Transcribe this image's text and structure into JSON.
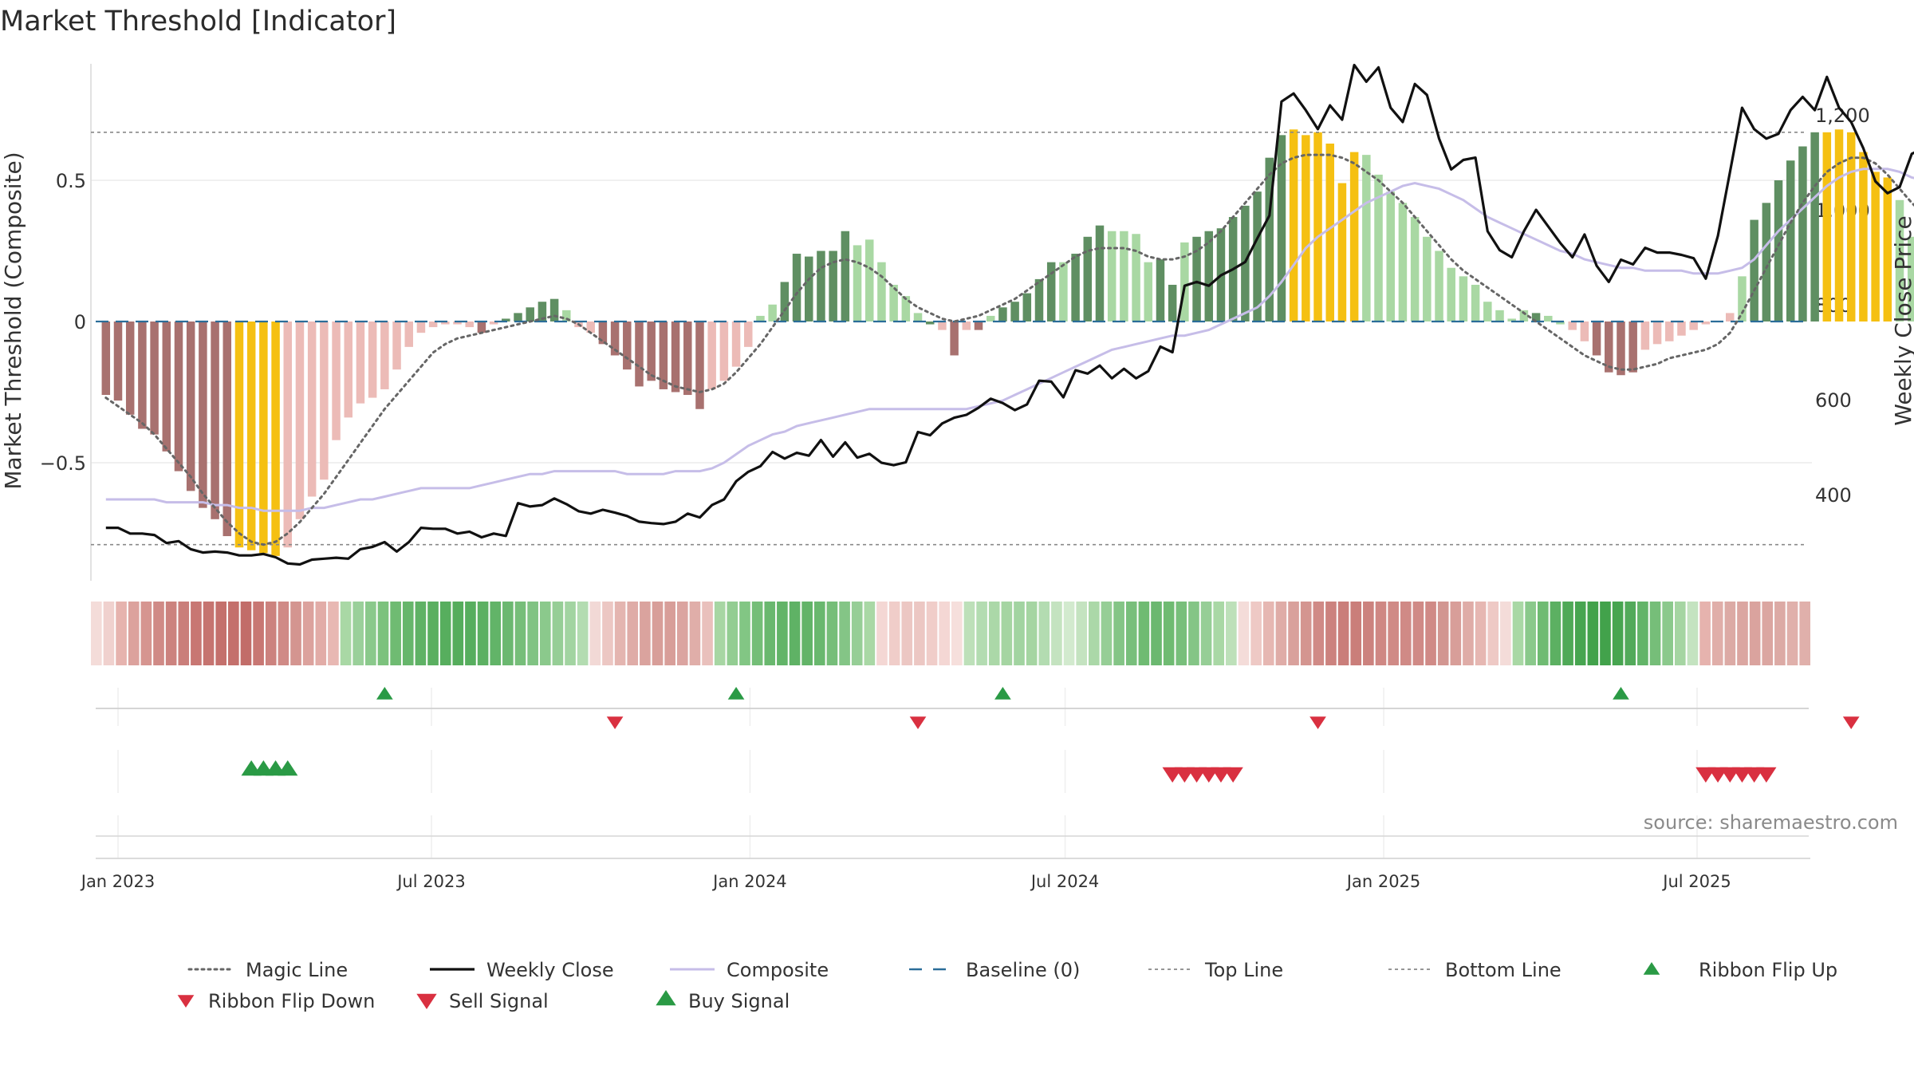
{
  "title": "Market Threshold [Indicator]",
  "source": "source: sharemaestro.com",
  "colors": {
    "magic_line": "#666666",
    "weekly_close": "#111111",
    "composite": "#c6bde8",
    "baseline": "#2b6d99",
    "top_line": "#888888",
    "bottom_line": "#888888",
    "buy": "#2a9a45",
    "sell": "#d93040",
    "extreme": "#f5c012",
    "pos_dark": "#5f8f62",
    "pos_light": "#a9d8a3",
    "neg_dark": "#a8716f",
    "neg_light": "#ecbbb7"
  },
  "chart_data": {
    "type": "bar",
    "ylabel_left": "Market Threshold (Composite)",
    "ylabel_right": "Weekly Close Price",
    "ylim_left": [
      -0.9,
      0.9
    ],
    "ylim_right": [
      190,
      1300
    ],
    "left_ticks": [
      {
        "v": 0.5,
        "label": "0.5"
      },
      {
        "v": 0,
        "label": "0"
      },
      {
        "v": -0.5,
        "label": "−0.5"
      }
    ],
    "right_ticks": [
      {
        "v": 1200,
        "label": "1,200"
      },
      {
        "v": 1000,
        "label": "1,000"
      },
      {
        "v": 800,
        "label": "800"
      },
      {
        "v": 600,
        "label": "600"
      },
      {
        "v": 400,
        "label": "400"
      }
    ],
    "x_ticks": [
      {
        "date": "2023-01-01",
        "label": "Jan 2023"
      },
      {
        "date": "2023-07-01",
        "label": "Jul 2023"
      },
      {
        "date": "2024-01-01",
        "label": "Jan 2024"
      },
      {
        "date": "2024-07-01",
        "label": "Jul 2024"
      },
      {
        "date": "2025-01-01",
        "label": "Jan 2025"
      },
      {
        "date": "2025-07-01",
        "label": "Jul 2025"
      }
    ],
    "x_range": [
      "2022-12-18",
      "2025-10-26"
    ],
    "start_date": "2022-12-25",
    "top_line": 0.67,
    "bottom_line": -0.79,
    "composite_bars": [
      -0.26,
      -0.28,
      -0.33,
      -0.38,
      -0.4,
      -0.46,
      -0.53,
      -0.6,
      -0.66,
      -0.7,
      -0.76,
      -0.8,
      -0.81,
      -0.82,
      -0.83,
      -0.8,
      -0.7,
      -0.62,
      -0.56,
      -0.42,
      -0.34,
      -0.29,
      -0.27,
      -0.24,
      -0.17,
      -0.09,
      -0.04,
      -0.02,
      -0.01,
      -0.01,
      -0.02,
      -0.04,
      -0.01,
      0.01,
      0.03,
      0.05,
      0.07,
      0.08,
      0.04,
      -0.02,
      -0.04,
      -0.08,
      -0.12,
      -0.17,
      -0.23,
      -0.21,
      -0.24,
      -0.25,
      -0.26,
      -0.31,
      -0.24,
      -0.21,
      -0.16,
      -0.09,
      0.02,
      0.06,
      0.14,
      0.24,
      0.23,
      0.25,
      0.25,
      0.32,
      0.27,
      0.29,
      0.21,
      0.13,
      0.09,
      0.03,
      -0.01,
      -0.03,
      -0.12,
      -0.03,
      -0.03,
      0.02,
      0.05,
      0.07,
      0.1,
      0.15,
      0.21,
      0.21,
      0.24,
      0.3,
      0.34,
      0.32,
      0.32,
      0.31,
      0.21,
      0.22,
      0.13,
      0.28,
      0.3,
      0.32,
      0.33,
      0.37,
      0.41,
      0.46,
      0.58,
      0.66,
      0.68,
      0.66,
      0.67,
      0.63,
      0.49,
      0.6,
      0.59,
      0.52,
      0.46,
      0.42,
      0.37,
      0.3,
      0.25,
      0.19,
      0.16,
      0.13,
      0.07,
      0.04,
      0.01,
      0.04,
      0.03,
      0.02,
      -0.01,
      -0.03,
      -0.07,
      -0.12,
      -0.18,
      -0.19,
      -0.18,
      -0.1,
      -0.08,
      -0.07,
      -0.05,
      -0.03,
      -0.01,
      0.0,
      0.03,
      0.16,
      0.36,
      0.42,
      0.5,
      0.57,
      0.62,
      0.67,
      0.67,
      0.68,
      0.67,
      0.6,
      0.53,
      0.51,
      0.43,
      0.3,
      0.21,
      0.2,
      0.22
    ],
    "bar_category": [
      "nd",
      "nd",
      "nd",
      "nd",
      "nd",
      "nd",
      "nd",
      "nd",
      "nd",
      "nd",
      "nd",
      "ex",
      "ex",
      "ex",
      "ex",
      "nl",
      "nl",
      "nl",
      "nl",
      "nl",
      "nl",
      "nl",
      "nl",
      "nl",
      "nl",
      "nl",
      "nl",
      "nl",
      "nl",
      "nl",
      "nl",
      "nd",
      "nl",
      "pd",
      "pd",
      "pd",
      "pd",
      "pd",
      "pl",
      "nl",
      "nl",
      "nd",
      "nd",
      "nd",
      "nd",
      "nd",
      "nd",
      "nd",
      "nd",
      "nd",
      "nl",
      "nl",
      "nl",
      "nl",
      "pl",
      "pl",
      "pd",
      "pd",
      "pd",
      "pd",
      "pd",
      "pd",
      "pl",
      "pl",
      "pl",
      "pl",
      "pl",
      "pl",
      "pd",
      "nl",
      "nd",
      "nl",
      "nd",
      "pl",
      "pd",
      "pd",
      "pd",
      "pd",
      "pd",
      "pl",
      "pd",
      "pd",
      "pd",
      "pl",
      "pl",
      "pl",
      "pl",
      "pd",
      "pd",
      "pl",
      "pd",
      "pd",
      "pd",
      "pd",
      "pd",
      "pd",
      "pd",
      "pd",
      "ex",
      "ex",
      "ex",
      "ex",
      "ex",
      "ex",
      "pl",
      "pl",
      "pl",
      "pl",
      "pl",
      "pl",
      "pl",
      "pl",
      "pl",
      "pl",
      "pl",
      "pl",
      "pl",
      "pl",
      "pd",
      "pl",
      "pl",
      "nl",
      "nl",
      "nd",
      "nd",
      "nd",
      "nd",
      "nl",
      "nl",
      "nl",
      "nl",
      "nl",
      "nl",
      "nl",
      "nl",
      "pl",
      "pd",
      "pd",
      "pd",
      "pd",
      "pd",
      "pd",
      "ex",
      "ex",
      "ex",
      "ex",
      "ex",
      "ex",
      "pl",
      "pl",
      "pl",
      "pl",
      "pl",
      "pl",
      "pd",
      "pd"
    ],
    "magic_line": [
      -0.27,
      -0.3,
      -0.33,
      -0.36,
      -0.4,
      -0.45,
      -0.5,
      -0.55,
      -0.61,
      -0.66,
      -0.71,
      -0.75,
      -0.78,
      -0.79,
      -0.78,
      -0.75,
      -0.71,
      -0.66,
      -0.61,
      -0.55,
      -0.49,
      -0.43,
      -0.37,
      -0.31,
      -0.26,
      -0.21,
      -0.16,
      -0.11,
      -0.08,
      -0.06,
      -0.05,
      -0.04,
      -0.03,
      -0.02,
      -0.01,
      0.0,
      0.01,
      0.02,
      0.01,
      -0.01,
      -0.04,
      -0.07,
      -0.1,
      -0.13,
      -0.16,
      -0.19,
      -0.21,
      -0.23,
      -0.24,
      -0.25,
      -0.24,
      -0.22,
      -0.18,
      -0.13,
      -0.08,
      -0.02,
      0.04,
      0.1,
      0.15,
      0.19,
      0.21,
      0.22,
      0.21,
      0.19,
      0.16,
      0.12,
      0.08,
      0.05,
      0.03,
      0.01,
      0.0,
      0.01,
      0.02,
      0.04,
      0.06,
      0.08,
      0.11,
      0.14,
      0.17,
      0.2,
      0.23,
      0.25,
      0.26,
      0.26,
      0.26,
      0.25,
      0.23,
      0.22,
      0.22,
      0.23,
      0.25,
      0.28,
      0.32,
      0.37,
      0.42,
      0.47,
      0.52,
      0.56,
      0.58,
      0.59,
      0.59,
      0.59,
      0.58,
      0.56,
      0.53,
      0.5,
      0.46,
      0.42,
      0.37,
      0.32,
      0.27,
      0.22,
      0.18,
      0.15,
      0.12,
      0.09,
      0.06,
      0.03,
      0.0,
      -0.03,
      -0.06,
      -0.09,
      -0.12,
      -0.14,
      -0.16,
      -0.17,
      -0.17,
      -0.16,
      -0.15,
      -0.13,
      -0.12,
      -0.11,
      -0.1,
      -0.08,
      -0.04,
      0.03,
      0.11,
      0.19,
      0.27,
      0.35,
      0.42,
      0.48,
      0.53,
      0.56,
      0.58,
      0.58,
      0.56,
      0.52,
      0.47,
      0.42,
      0.38,
      0.34
    ],
    "composite_line": [
      -0.63,
      -0.63,
      -0.63,
      -0.63,
      -0.63,
      -0.64,
      -0.64,
      -0.64,
      -0.64,
      -0.65,
      -0.65,
      -0.66,
      -0.66,
      -0.67,
      -0.67,
      -0.67,
      -0.67,
      -0.66,
      -0.66,
      -0.65,
      -0.64,
      -0.63,
      -0.63,
      -0.62,
      -0.61,
      -0.6,
      -0.59,
      -0.59,
      -0.59,
      -0.59,
      -0.59,
      -0.58,
      -0.57,
      -0.56,
      -0.55,
      -0.54,
      -0.54,
      -0.53,
      -0.53,
      -0.53,
      -0.53,
      -0.53,
      -0.53,
      -0.54,
      -0.54,
      -0.54,
      -0.54,
      -0.53,
      -0.53,
      -0.53,
      -0.52,
      -0.5,
      -0.47,
      -0.44,
      -0.42,
      -0.4,
      -0.39,
      -0.37,
      -0.36,
      -0.35,
      -0.34,
      -0.33,
      -0.32,
      -0.31,
      -0.31,
      -0.31,
      -0.31,
      -0.31,
      -0.31,
      -0.31,
      -0.31,
      -0.31,
      -0.3,
      -0.29,
      -0.28,
      -0.26,
      -0.24,
      -0.22,
      -0.2,
      -0.18,
      -0.16,
      -0.14,
      -0.12,
      -0.1,
      -0.09,
      -0.08,
      -0.07,
      -0.06,
      -0.05,
      -0.05,
      -0.04,
      -0.03,
      -0.01,
      0.01,
      0.03,
      0.05,
      0.09,
      0.14,
      0.2,
      0.26,
      0.3,
      0.33,
      0.36,
      0.39,
      0.42,
      0.44,
      0.46,
      0.48,
      0.49,
      0.48,
      0.47,
      0.45,
      0.43,
      0.4,
      0.37,
      0.35,
      0.33,
      0.31,
      0.29,
      0.27,
      0.25,
      0.24,
      0.22,
      0.21,
      0.2,
      0.19,
      0.19,
      0.18,
      0.18,
      0.18,
      0.18,
      0.17,
      0.17,
      0.17,
      0.18,
      0.19,
      0.22,
      0.27,
      0.32,
      0.36,
      0.4,
      0.44,
      0.48,
      0.51,
      0.53,
      0.54,
      0.54,
      0.54,
      0.53,
      0.51,
      0.5,
      0.5,
      0.5
    ],
    "weekly_close": [
      330,
      330,
      318,
      318,
      315,
      298,
      302,
      285,
      278,
      280,
      278,
      272,
      272,
      275,
      268,
      255,
      253,
      263,
      265,
      267,
      265,
      285,
      290,
      300,
      280,
      300,
      330,
      328,
      328,
      318,
      322,
      310,
      318,
      313,
      382,
      375,
      378,
      392,
      380,
      365,
      360,
      368,
      362,
      355,
      343,
      340,
      338,
      343,
      360,
      352,
      378,
      390,
      428,
      448,
      460,
      490,
      476,
      488,
      482,
      515,
      480,
      510,
      478,
      486,
      467,
      462,
      468,
      532,
      525,
      550,
      562,
      568,
      583,
      602,
      593,
      578,
      590,
      640,
      638,
      605,
      662,
      655,
      672,
      645,
      665,
      645,
      660,
      712,
      700,
      840,
      848,
      840,
      862,
      875,
      890,
      940,
      988,
      1228,
      1245,
      1210,
      1170,
      1220,
      1190,
      1305,
      1270,
      1300,
      1215,
      1185,
      1265,
      1242,
      1150,
      1085,
      1105,
      1110,
      955,
      915,
      900,
      955,
      1000,
      965,
      930,
      900,
      948,
      882,
      848,
      895,
      885,
      920,
      910,
      910,
      905,
      898,
      855,
      945,
      1080,
      1215,
      1170,
      1150,
      1160,
      1210,
      1238,
      1210,
      1280,
      1215,
      1185,
      1130,
      1060,
      1035,
      1048,
      1118,
      1130
    ],
    "ribbon_colors": [
      "#f4dcd9",
      "#f0d1ce",
      "#e6b3ae",
      "#dca29d",
      "#d69590",
      "#d08a86",
      "#cc827e",
      "#ca7e7a",
      "#c87773",
      "#c67470",
      "#c4706c",
      "#c4706c",
      "#c26d69",
      "#c87773",
      "#cc827e",
      "#d08a86",
      "#d49590",
      "#dca29d",
      "#e2aca7",
      "#e8b8b3",
      "#a9d8a5",
      "#9ad09a",
      "#8ac98b",
      "#7cc27d",
      "#6fbb72",
      "#66b66b",
      "#5fb265",
      "#5aaf60",
      "#57ae5e",
      "#55ad5c",
      "#57ae5e",
      "#5cb062",
      "#62b468",
      "#6bb870",
      "#76be79",
      "#80c383",
      "#8bc98c",
      "#96ce96",
      "#a2d4a1",
      "#b3dcb1",
      "#f2d9d6",
      "#ecc7c3",
      "#e4b5b0",
      "#dfaca7",
      "#daa39e",
      "#d89e99",
      "#d89e99",
      "#dba4a0",
      "#e0aea9",
      "#e9c0bc",
      "#a7d6a3",
      "#93cd92",
      "#82c684",
      "#74be77",
      "#69b86e",
      "#62b468",
      "#5fb265",
      "#62b468",
      "#69b86e",
      "#76be79",
      "#84c586",
      "#96ce96",
      "#a9d8a5",
      "#f4d7d4",
      "#f0cdc9",
      "#ecc7c3",
      "#ecc7c3",
      "#f0cdc9",
      "#f4d7d4",
      "#f6dfdc",
      "#bde0b9",
      "#b3dcb1",
      "#abd8a8",
      "#a5d5a2",
      "#a2d4a1",
      "#a5d5a2",
      "#b3dcb1",
      "#c4e3c0",
      "#d2eace",
      "#c4e3c0",
      "#abd8a8",
      "#96ce96",
      "#84c586",
      "#78bf7b",
      "#6fbb72",
      "#6bb870",
      "#6fbb72",
      "#78bf7b",
      "#84c586",
      "#96ce96",
      "#a9d8a5",
      "#bde0b9",
      "#f4dcd9",
      "#eec9c5",
      "#e6b7b2",
      "#dfaca7",
      "#d9a19c",
      "#d49590",
      "#d08a86",
      "#cc827e",
      "#ca7e7a",
      "#ca7e7a",
      "#cc827e",
      "#cf8783",
      "#d08a86",
      "#d08a86",
      "#d08a86",
      "#d08a86",
      "#d29691",
      "#d89e99",
      "#dfaca7",
      "#e6b7b2",
      "#eec9c5",
      "#f4dcd9",
      "#a9d8a5",
      "#8ac98b",
      "#6fbb72",
      "#5cb062",
      "#4fa957",
      "#47a550",
      "#42a24b",
      "#42a24b",
      "#47a550",
      "#52aa5a",
      "#62b468",
      "#76be79",
      "#8bc98c",
      "#a5d5a2",
      "#c4e3c0",
      "#e6b3ae",
      "#e0aea9",
      "#dcaaa5",
      "#dba6a1",
      "#daa39e",
      "#dba6a1",
      "#dcaaa5",
      "#e0b0ab",
      "#e0b0ab"
    ],
    "ribbon_flip_up": [
      "2023-06-04",
      "2023-12-24",
      "2024-05-26",
      "2025-05-18"
    ],
    "ribbon_flip_down": [
      "2023-10-15",
      "2024-04-07",
      "2024-11-24",
      "2025-09-28"
    ],
    "buy_signals": [
      "2023-03-19",
      "2023-03-26",
      "2023-04-02",
      "2023-04-09"
    ],
    "sell_signals": [
      "2024-09-01",
      "2024-09-08",
      "2024-09-15",
      "2024-09-22",
      "2024-09-29",
      "2024-10-06",
      "2025-07-06",
      "2025-07-13",
      "2025-07-20",
      "2025-07-27",
      "2025-08-03",
      "2025-08-10"
    ],
    "legend": [
      {
        "label": "Magic Line",
        "kind": "dotted"
      },
      {
        "label": "Weekly Close",
        "kind": "solid"
      },
      {
        "label": "Composite",
        "kind": "composite"
      },
      {
        "label": "Baseline (0)",
        "kind": "dashed"
      },
      {
        "label": "Top Line",
        "kind": "thin-dotted"
      },
      {
        "label": "Bottom Line",
        "kind": "thin-dotted"
      },
      {
        "label": "Ribbon Flip Up",
        "kind": "tri-up-small"
      },
      {
        "label": "Ribbon Flip Down",
        "kind": "tri-down-small"
      },
      {
        "label": "Sell Signal",
        "kind": "tri-down"
      },
      {
        "label": "Buy Signal",
        "kind": "tri-up"
      }
    ]
  }
}
